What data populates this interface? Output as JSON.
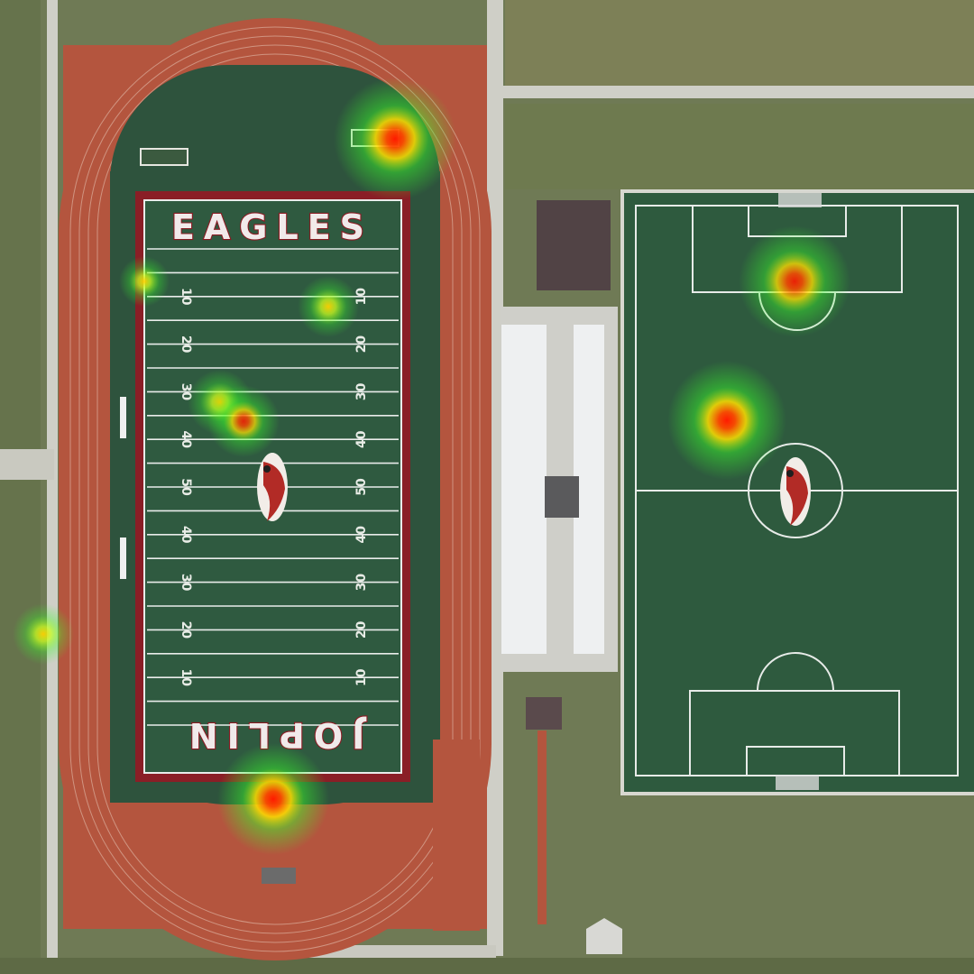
{
  "field": {
    "end_zone_top": "EAGLES",
    "end_zone_bottom": "JOPLIN",
    "yard_numbers": [
      "10",
      "20",
      "30",
      "40",
      "50",
      "40",
      "30",
      "20",
      "10"
    ]
  },
  "heatmap": {
    "colors": {
      "core": "#ff1a00",
      "mid": "#ffe000",
      "halo": "#39ff2a"
    }
  },
  "colors": {
    "track": "#b4553e",
    "turf": "#2f5a40",
    "field_border": "#8a1e26",
    "grass": "#6f7a55",
    "concrete": "#cfcfc7"
  }
}
